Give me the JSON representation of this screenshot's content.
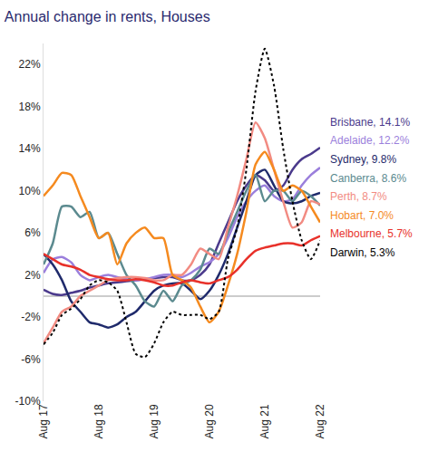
{
  "chart_data": {
    "type": "line",
    "title": "Annual change in rents, Houses",
    "categories": [
      "Aug 17",
      null,
      null,
      null,
      null,
      null,
      "Aug 18",
      null,
      null,
      null,
      null,
      null,
      "Aug 19",
      null,
      null,
      null,
      null,
      null,
      "Aug 20",
      null,
      null,
      null,
      null,
      null,
      "Aug 21",
      null,
      null,
      null,
      null,
      null,
      "Aug 22"
    ],
    "ylim": [
      -10,
      24
    ],
    "yticks": [
      {
        "value": -10,
        "label": "-10%"
      },
      {
        "value": -6,
        "label": "-6%"
      },
      {
        "value": -2,
        "label": "-2%"
      },
      {
        "value": 2,
        "label": "2%"
      },
      {
        "value": 6,
        "label": "6%"
      },
      {
        "value": 10,
        "label": "10%"
      },
      {
        "value": 14,
        "label": "14%"
      },
      {
        "value": 18,
        "label": "18%"
      },
      {
        "value": 22,
        "label": "22%"
      }
    ],
    "grid": false,
    "series": [
      {
        "name": "Brisbane, 14.1%",
        "color": "#4b3a8c",
        "line_style": "solid",
        "values": [
          0.6,
          0.2,
          0.1,
          0.3,
          0.5,
          0.8,
          1.0,
          1.2,
          1.3,
          1.4,
          1.5,
          1.6,
          1.7,
          1.8,
          1.8,
          1.5,
          1.5,
          2.0,
          3.0,
          5.0,
          7.0,
          9.0,
          10.5,
          11.5,
          11.0,
          10.0,
          10.5,
          12.0,
          13.0,
          13.5,
          14.1
        ]
      },
      {
        "name": "Adelaide, 12.2%",
        "color": "#9b7fdc",
        "line_style": "solid",
        "values": [
          2.2,
          3.5,
          3.7,
          3.2,
          2.0,
          1.5,
          1.8,
          2.0,
          1.8,
          1.6,
          1.5,
          1.6,
          1.8,
          2.0,
          2.0,
          1.8,
          2.2,
          2.8,
          3.2,
          4.0,
          5.5,
          7.5,
          9.0,
          10.0,
          10.5,
          9.5,
          9.0,
          9.2,
          10.5,
          11.5,
          12.2
        ]
      },
      {
        "name": "Sydney, 9.8%",
        "color": "#1f2a6b",
        "line_style": "solid",
        "values": [
          4.0,
          3.0,
          1.5,
          -0.5,
          -1.5,
          -2.5,
          -2.7,
          -3.0,
          -2.7,
          -2.0,
          -1.5,
          -0.5,
          0.5,
          1.0,
          1.2,
          1.2,
          0.5,
          -0.3,
          0.5,
          2.0,
          4.0,
          6.5,
          9.0,
          11.5,
          12.0,
          10.5,
          9.0,
          8.8,
          9.0,
          9.5,
          9.8
        ]
      },
      {
        "name": "Canberra, 8.6%",
        "color": "#5b8a8f",
        "line_style": "solid",
        "values": [
          3.0,
          5.0,
          8.5,
          8.5,
          7.5,
          8.0,
          5.5,
          6.0,
          4.0,
          2.0,
          1.0,
          -0.5,
          -1.0,
          0.5,
          -0.5,
          1.0,
          1.5,
          2.5,
          4.5,
          4.0,
          6.0,
          8.0,
          10.0,
          11.5,
          9.0,
          10.0,
          10.0,
          9.0,
          10.0,
          9.5,
          8.6
        ]
      },
      {
        "name": "Perth, 8.7%",
        "color": "#f28b82",
        "line_style": "solid",
        "values": [
          -4.5,
          -3.0,
          -1.5,
          -1.0,
          0.0,
          0.5,
          1.0,
          1.5,
          1.7,
          1.8,
          1.8,
          1.7,
          1.5,
          1.5,
          2.0,
          2.0,
          3.0,
          4.5,
          4.0,
          3.5,
          6.5,
          9.5,
          13.0,
          16.5,
          15.0,
          12.0,
          9.0,
          6.5,
          7.0,
          9.0,
          8.7
        ]
      },
      {
        "name": "Hobart, 7.0%",
        "color": "#f58a1f",
        "line_style": "solid",
        "values": [
          9.5,
          10.5,
          11.7,
          11.5,
          9.5,
          7.5,
          5.5,
          6.0,
          3.0,
          5.0,
          6.0,
          6.5,
          5.5,
          5.5,
          2.0,
          1.5,
          0.8,
          -1.0,
          -2.5,
          -1.5,
          1.0,
          4.0,
          8.0,
          12.5,
          13.7,
          12.0,
          10.0,
          10.5,
          10.0,
          8.5,
          7.0
        ]
      },
      {
        "name": "Melbourne, 5.7%",
        "color": "#e8312a",
        "line_style": "solid",
        "values": [
          4.0,
          3.5,
          3.0,
          2.8,
          2.5,
          2.0,
          1.8,
          1.6,
          1.5,
          1.5,
          1.6,
          1.5,
          1.3,
          1.0,
          1.0,
          1.3,
          1.5,
          1.3,
          1.2,
          1.5,
          1.8,
          2.5,
          3.5,
          4.3,
          4.6,
          4.8,
          5.0,
          5.0,
          4.8,
          5.3,
          5.7
        ]
      },
      {
        "name": "Darwin, 5.3%",
        "color": "#000000",
        "line_style": "dotted",
        "values": [
          -4.6,
          -3.5,
          -1.8,
          -1.2,
          -0.3,
          1.0,
          1.5,
          1.3,
          0.5,
          -2.5,
          -5.5,
          -5.8,
          -4.5,
          -2.5,
          -1.5,
          -1.8,
          -1.8,
          -1.8,
          -2.2,
          -1.5,
          3.5,
          6.5,
          12.0,
          19.5,
          23.5,
          20.0,
          14.0,
          9.0,
          5.3,
          3.5,
          5.3
        ]
      }
    ]
  }
}
